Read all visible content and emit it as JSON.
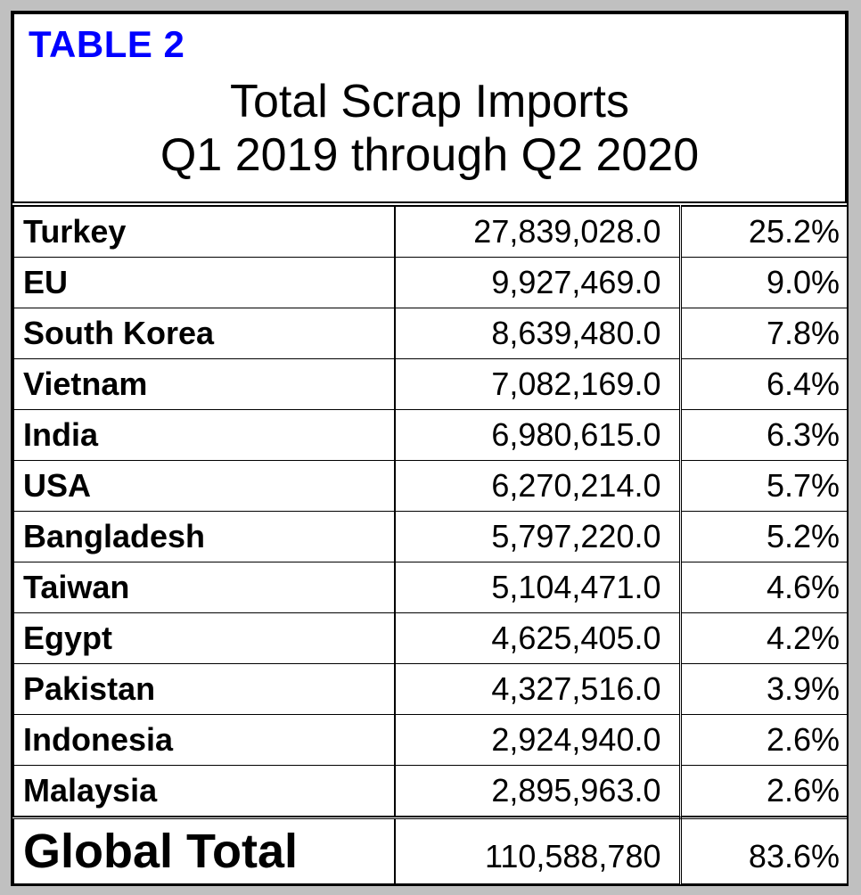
{
  "header": {
    "label": "TABLE 2",
    "title_line1": "Total Scrap Imports",
    "title_line2": "Q1 2019 through Q2 2020"
  },
  "rows": [
    {
      "country": "Turkey",
      "value": "27,839,028.0",
      "pct": "25.2%"
    },
    {
      "country": "EU",
      "value": "9,927,469.0",
      "pct": "9.0%"
    },
    {
      "country": "South Korea",
      "value": "8,639,480.0",
      "pct": "7.8%"
    },
    {
      "country": "Vietnam",
      "value": "7,082,169.0",
      "pct": "6.4%"
    },
    {
      "country": "India",
      "value": "6,980,615.0",
      "pct": "6.3%"
    },
    {
      "country": "USA",
      "value": "6,270,214.0",
      "pct": "5.7%"
    },
    {
      "country": "Bangladesh",
      "value": "5,797,220.0",
      "pct": "5.2%"
    },
    {
      "country": "Taiwan",
      "value": "5,104,471.0",
      "pct": "4.6%"
    },
    {
      "country": "Egypt",
      "value": "4,625,405.0",
      "pct": "4.2%"
    },
    {
      "country": "Pakistan",
      "value": "4,327,516.0",
      "pct": "3.9%"
    },
    {
      "country": "Indonesia",
      "value": "2,924,940.0",
      "pct": "2.6%"
    },
    {
      "country": "Malaysia",
      "value": "2,895,963.0",
      "pct": "2.6%"
    }
  ],
  "total": {
    "label": "Global Total",
    "value": "110,588,780",
    "pct": "83.6%"
  },
  "colors": {
    "label_blue": "#0000ff",
    "frame_gray": "#c0c0c0"
  }
}
